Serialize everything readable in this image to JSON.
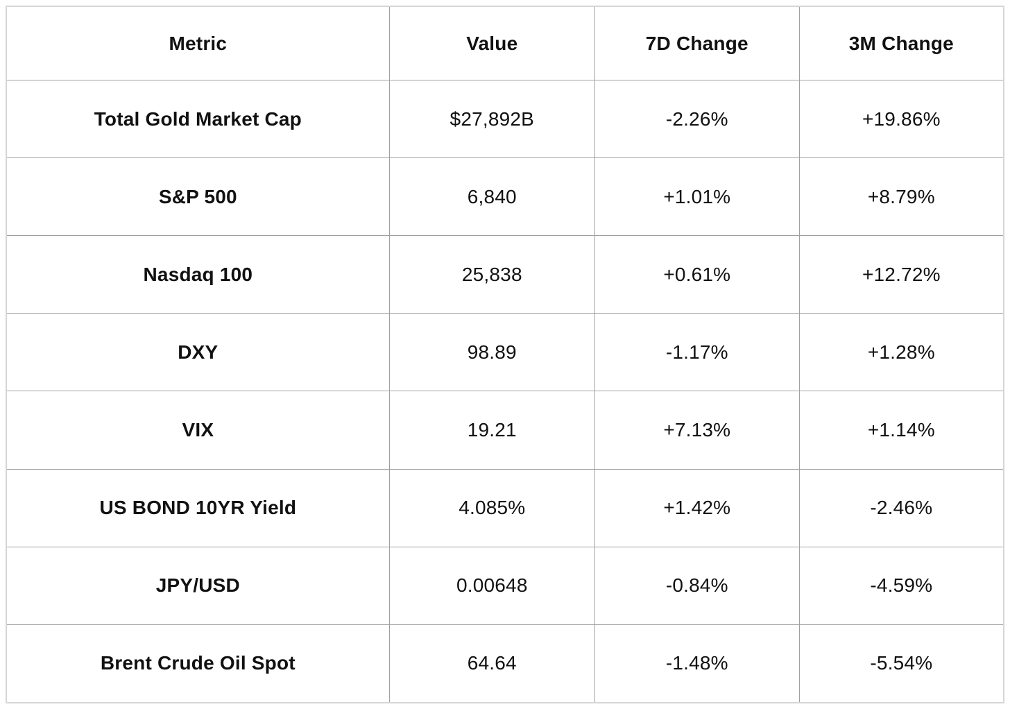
{
  "chart_data": {
    "type": "table",
    "title": "",
    "columns": [
      "Metric",
      "Value",
      "7D Change",
      "3M Change"
    ],
    "rows": [
      [
        "Total Gold Market Cap",
        "$27,892B",
        "-2.26%",
        "+19.86%"
      ],
      [
        "S&P 500",
        "6,840",
        "+1.01%",
        "+8.79%"
      ],
      [
        "Nasdaq 100",
        "25,838",
        "+0.61%",
        "+12.72%"
      ],
      [
        "DXY",
        "98.89",
        "-1.17%",
        "+1.28%"
      ],
      [
        "VIX",
        "19.21",
        "+7.13%",
        "+1.14%"
      ],
      [
        "US BOND 10YR Yield",
        "4.085%",
        "+1.42%",
        "-2.46%"
      ],
      [
        "JPY/USD",
        "0.00648",
        "-0.84%",
        "-4.59%"
      ],
      [
        "Brent Crude Oil Spot",
        "64.64",
        "-1.48%",
        "-5.54%"
      ]
    ]
  },
  "colors": {
    "border_inner": "#a0a0a0",
    "border_outer": "#d6d6d6",
    "text": "#111111",
    "background": "#ffffff"
  }
}
